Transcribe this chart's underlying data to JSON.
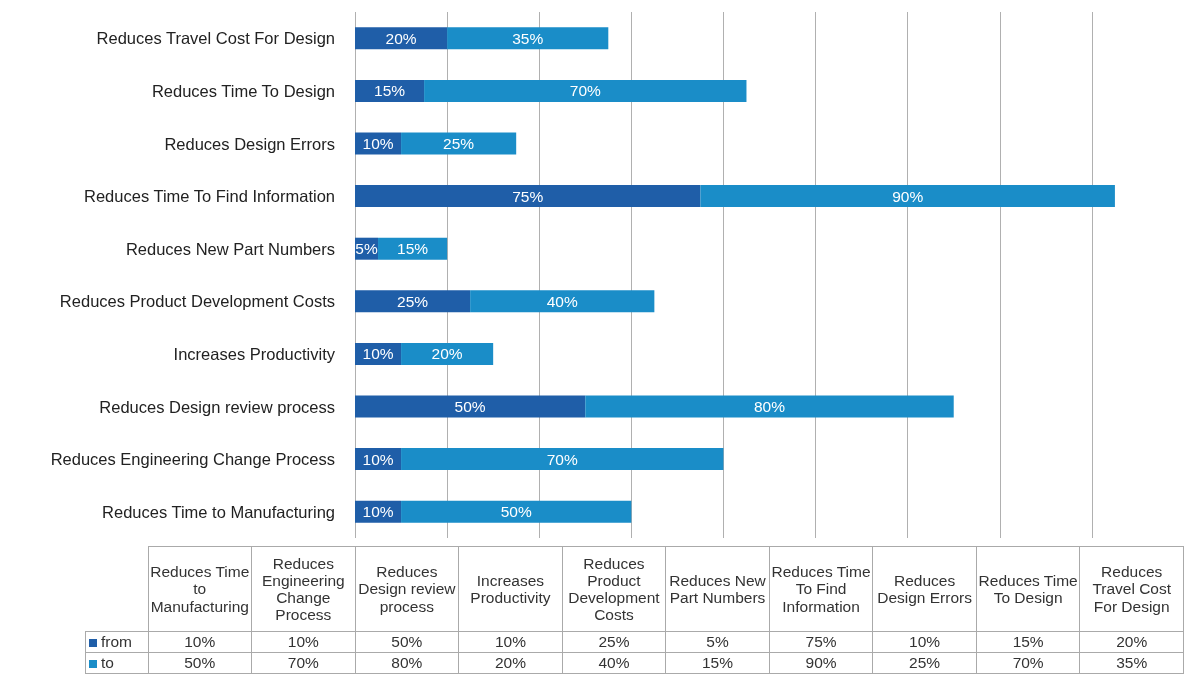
{
  "chart_data": {
    "type": "bar",
    "orientation": "horizontal",
    "stacked": true,
    "categories": [
      "Reduces Travel Cost For Design",
      "Reduces Time To Design",
      "Reduces Design Errors",
      "Reduces Time To Find Information",
      "Reduces New Part Numbers",
      "Reduces Product Development Costs",
      "Increases Productivity",
      "Reduces Design review process",
      "Reduces Engineering Change Process",
      "Reduces Time to Manufacturing"
    ],
    "series": [
      {
        "name": "from",
        "color": "#1f5ea8",
        "values": [
          20,
          15,
          10,
          75,
          5,
          25,
          10,
          50,
          10,
          10
        ],
        "value_labels": [
          "20%",
          "15%",
          "10%",
          "75%",
          "5%",
          "25%",
          "10%",
          "50%",
          "10%",
          "10%"
        ]
      },
      {
        "name": "to",
        "color": "#1a8dc8",
        "values": [
          35,
          70,
          25,
          90,
          15,
          40,
          20,
          80,
          70,
          50
        ],
        "value_labels": [
          "35%",
          "70%",
          "25%",
          "90%",
          "15%",
          "40%",
          "20%",
          "80%",
          "70%",
          "50%"
        ]
      }
    ],
    "tick_labels": "y",
    "grid": "x",
    "legend": "bottom"
  }
}
